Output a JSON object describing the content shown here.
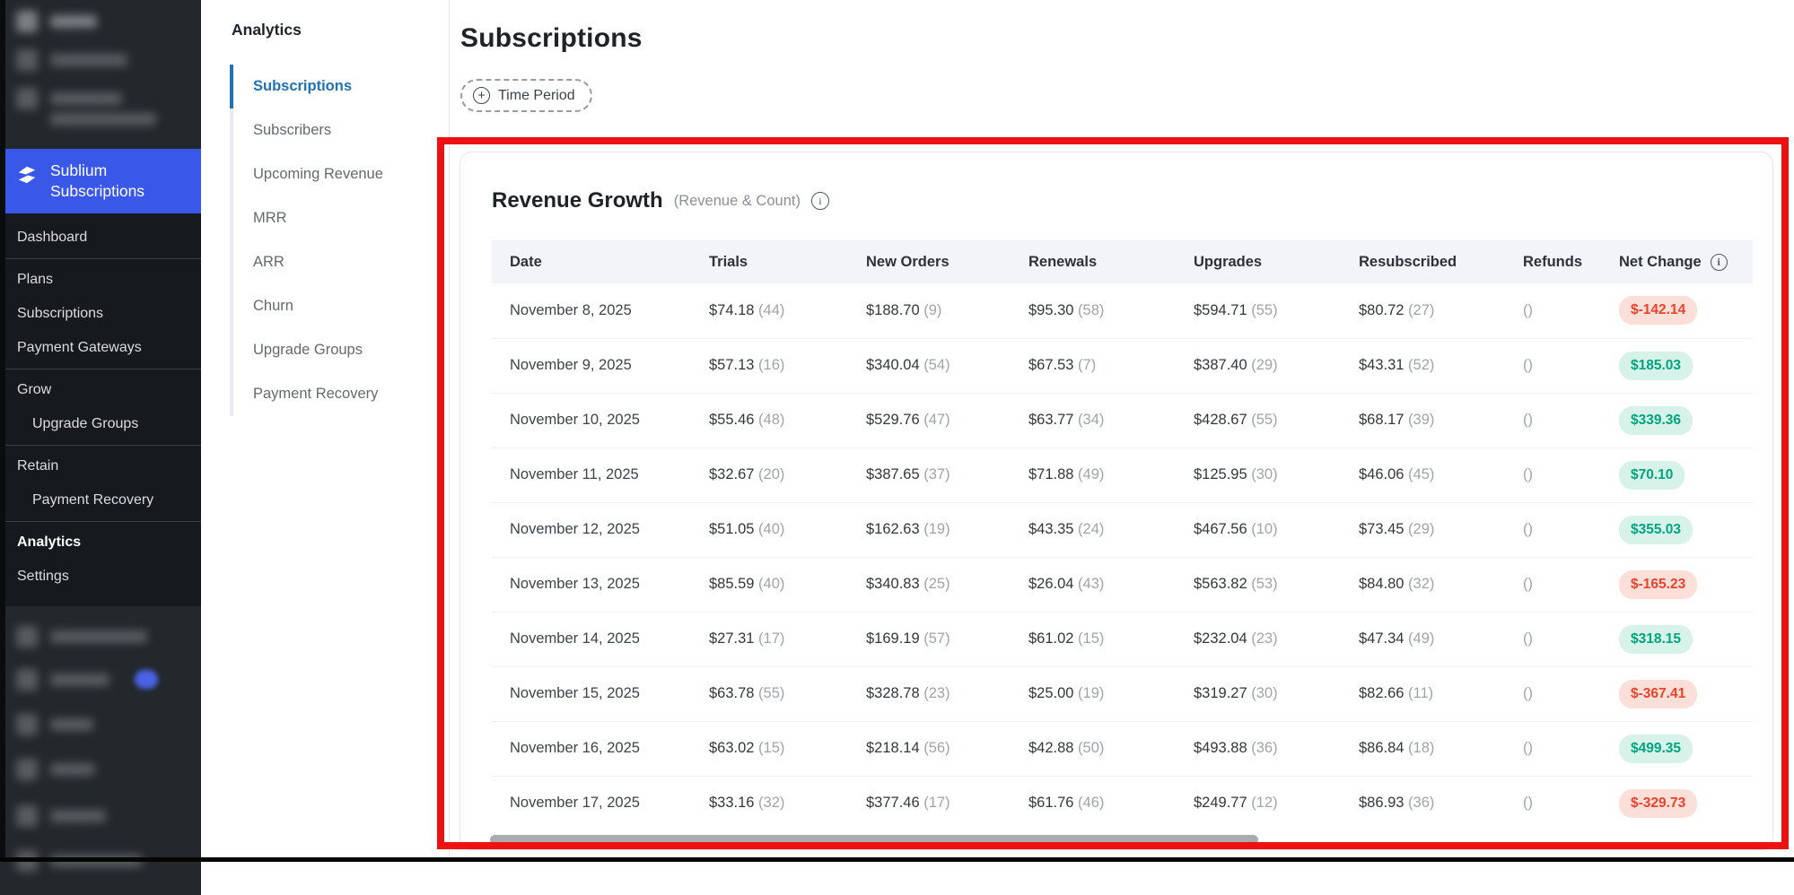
{
  "sidebar": {
    "plugin_name": "Sublium Subscriptions",
    "menu": [
      {
        "label": "Dashboard",
        "child": false,
        "active": false,
        "divider_after": true
      },
      {
        "label": "Plans",
        "child": false,
        "active": false,
        "divider_after": false
      },
      {
        "label": "Subscriptions",
        "child": false,
        "active": false,
        "divider_after": false
      },
      {
        "label": "Payment Gateways",
        "child": false,
        "active": false,
        "divider_after": true
      },
      {
        "label": "Grow",
        "child": false,
        "active": false,
        "divider_after": false
      },
      {
        "label": "Upgrade Groups",
        "child": true,
        "active": false,
        "divider_after": true
      },
      {
        "label": "Retain",
        "child": false,
        "active": false,
        "divider_after": false
      },
      {
        "label": "Payment Recovery",
        "child": true,
        "active": false,
        "divider_after": true
      },
      {
        "label": "Analytics",
        "child": false,
        "active": true,
        "divider_after": false
      },
      {
        "label": "Settings",
        "child": false,
        "active": false,
        "divider_after": false
      }
    ]
  },
  "subnav": {
    "title": "Analytics",
    "items": [
      {
        "label": "Subscriptions",
        "active": true
      },
      {
        "label": "Subscribers",
        "active": false
      },
      {
        "label": "Upcoming Revenue",
        "active": false
      },
      {
        "label": "MRR",
        "active": false
      },
      {
        "label": "ARR",
        "active": false
      },
      {
        "label": "Churn",
        "active": false
      },
      {
        "label": "Upgrade Groups",
        "active": false
      },
      {
        "label": "Payment Recovery",
        "active": false
      }
    ]
  },
  "page": {
    "title": "Subscriptions",
    "time_period_label": "Time Period"
  },
  "card": {
    "title": "Revenue Growth",
    "subtitle": "(Revenue & Count)"
  },
  "table": {
    "columns": [
      {
        "label": "Date",
        "info": false
      },
      {
        "label": "Trials",
        "info": false
      },
      {
        "label": "New Orders",
        "info": false
      },
      {
        "label": "Renewals",
        "info": false
      },
      {
        "label": "Upgrades",
        "info": false
      },
      {
        "label": "Resubscribed",
        "info": false
      },
      {
        "label": "Refunds",
        "info": false
      },
      {
        "label": "Net Change",
        "info": true
      }
    ],
    "rows": [
      {
        "date": "November 8, 2025",
        "trials": {
          "amount": "$74.18",
          "count": "(44)"
        },
        "new_orders": {
          "amount": "$188.70",
          "count": "(9)"
        },
        "renewals": {
          "amount": "$95.30",
          "count": "(58)"
        },
        "upgrades": {
          "amount": "$594.71",
          "count": "(55)"
        },
        "resubscribed": {
          "amount": "$80.72",
          "count": "(27)"
        },
        "refunds": "()",
        "net_change": {
          "value": "$-142.14",
          "positive": false
        }
      },
      {
        "date": "November 9, 2025",
        "trials": {
          "amount": "$57.13",
          "count": "(16)"
        },
        "new_orders": {
          "amount": "$340.04",
          "count": "(54)"
        },
        "renewals": {
          "amount": "$67.53",
          "count": "(7)"
        },
        "upgrades": {
          "amount": "$387.40",
          "count": "(29)"
        },
        "resubscribed": {
          "amount": "$43.31",
          "count": "(52)"
        },
        "refunds": "()",
        "net_change": {
          "value": "$185.03",
          "positive": true
        }
      },
      {
        "date": "November 10, 2025",
        "trials": {
          "amount": "$55.46",
          "count": "(48)"
        },
        "new_orders": {
          "amount": "$529.76",
          "count": "(47)"
        },
        "renewals": {
          "amount": "$63.77",
          "count": "(34)"
        },
        "upgrades": {
          "amount": "$428.67",
          "count": "(55)"
        },
        "resubscribed": {
          "amount": "$68.17",
          "count": "(39)"
        },
        "refunds": "()",
        "net_change": {
          "value": "$339.36",
          "positive": true
        }
      },
      {
        "date": "November 11, 2025",
        "trials": {
          "amount": "$32.67",
          "count": "(20)"
        },
        "new_orders": {
          "amount": "$387.65",
          "count": "(37)"
        },
        "renewals": {
          "amount": "$71.88",
          "count": "(49)"
        },
        "upgrades": {
          "amount": "$125.95",
          "count": "(30)"
        },
        "resubscribed": {
          "amount": "$46.06",
          "count": "(45)"
        },
        "refunds": "()",
        "net_change": {
          "value": "$70.10",
          "positive": true
        }
      },
      {
        "date": "November 12, 2025",
        "trials": {
          "amount": "$51.05",
          "count": "(40)"
        },
        "new_orders": {
          "amount": "$162.63",
          "count": "(19)"
        },
        "renewals": {
          "amount": "$43.35",
          "count": "(24)"
        },
        "upgrades": {
          "amount": "$467.56",
          "count": "(10)"
        },
        "resubscribed": {
          "amount": "$73.45",
          "count": "(29)"
        },
        "refunds": "()",
        "net_change": {
          "value": "$355.03",
          "positive": true
        }
      },
      {
        "date": "November 13, 2025",
        "trials": {
          "amount": "$85.59",
          "count": "(40)"
        },
        "new_orders": {
          "amount": "$340.83",
          "count": "(25)"
        },
        "renewals": {
          "amount": "$26.04",
          "count": "(43)"
        },
        "upgrades": {
          "amount": "$563.82",
          "count": "(53)"
        },
        "resubscribed": {
          "amount": "$84.80",
          "count": "(32)"
        },
        "refunds": "()",
        "net_change": {
          "value": "$-165.23",
          "positive": false
        }
      },
      {
        "date": "November 14, 2025",
        "trials": {
          "amount": "$27.31",
          "count": "(17)"
        },
        "new_orders": {
          "amount": "$169.19",
          "count": "(57)"
        },
        "renewals": {
          "amount": "$61.02",
          "count": "(15)"
        },
        "upgrades": {
          "amount": "$232.04",
          "count": "(23)"
        },
        "resubscribed": {
          "amount": "$47.34",
          "count": "(49)"
        },
        "refunds": "()",
        "net_change": {
          "value": "$318.15",
          "positive": true
        }
      },
      {
        "date": "November 15, 2025",
        "trials": {
          "amount": "$63.78",
          "count": "(55)"
        },
        "new_orders": {
          "amount": "$328.78",
          "count": "(23)"
        },
        "renewals": {
          "amount": "$25.00",
          "count": "(19)"
        },
        "upgrades": {
          "amount": "$319.27",
          "count": "(30)"
        },
        "resubscribed": {
          "amount": "$82.66",
          "count": "(11)"
        },
        "refunds": "()",
        "net_change": {
          "value": "$-367.41",
          "positive": false
        }
      },
      {
        "date": "November 16, 2025",
        "trials": {
          "amount": "$63.02",
          "count": "(15)"
        },
        "new_orders": {
          "amount": "$218.14",
          "count": "(56)"
        },
        "renewals": {
          "amount": "$42.88",
          "count": "(50)"
        },
        "upgrades": {
          "amount": "$493.88",
          "count": "(36)"
        },
        "resubscribed": {
          "amount": "$86.84",
          "count": "(18)"
        },
        "refunds": "()",
        "net_change": {
          "value": "$499.35",
          "positive": true
        }
      },
      {
        "date": "November 17, 2025",
        "trials": {
          "amount": "$33.16",
          "count": "(32)"
        },
        "new_orders": {
          "amount": "$377.46",
          "count": "(17)"
        },
        "renewals": {
          "amount": "$61.76",
          "count": "(46)"
        },
        "upgrades": {
          "amount": "$249.77",
          "count": "(12)"
        },
        "resubscribed": {
          "amount": "$86.93",
          "count": "(36)"
        },
        "refunds": "()",
        "net_change": {
          "value": "$-329.73",
          "positive": false
        }
      }
    ]
  },
  "colors": {
    "plugin_active_bg": "#3a58e8",
    "subnav_active": "#2271b1",
    "net_positive_text": "#00a47e",
    "net_positive_bg": "#d7f2e8",
    "net_negative_text": "#e8442b",
    "net_negative_bg": "#fcdfd9",
    "annotation_red": "#ed1111",
    "table_header_bg": "#f3f3fa"
  }
}
